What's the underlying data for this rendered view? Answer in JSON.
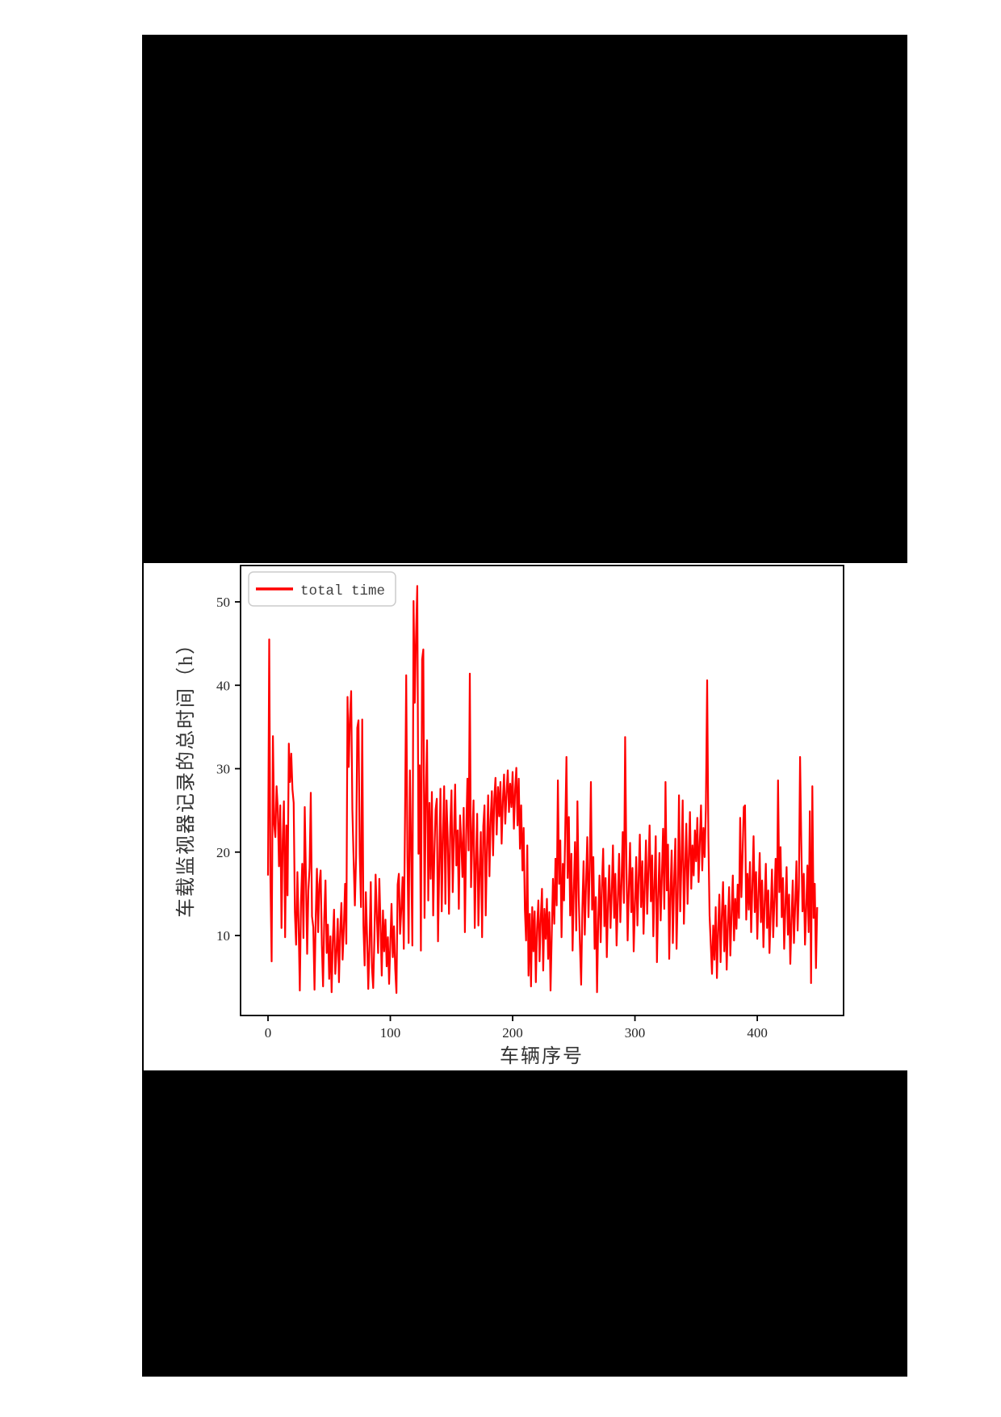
{
  "page": {
    "background_color": "#ffffff",
    "redacted_block_color": "#000000"
  },
  "chart_data": {
    "type": "line",
    "title": "",
    "xlabel": "车辆序号",
    "ylabel": "车载监视器记录的总时间（h）",
    "legend": {
      "position": "upper left",
      "entries": [
        "total time"
      ],
      "border_color": "#cccccc",
      "text_color": "#404040"
    },
    "grid": false,
    "line_color": "#ff0000",
    "axis_color": "#000000",
    "xlim": [
      -23,
      470
    ],
    "ylim": [
      0.4,
      54.3
    ],
    "xticks": [
      0,
      100,
      200,
      300,
      400
    ],
    "yticks": [
      10,
      20,
      30,
      40,
      50
    ],
    "series": [
      {
        "name": "total time",
        "color": "#ff0000",
        "x_start": 0,
        "x_step": 1,
        "values": [
          17.2,
          45.5,
          16.8,
          6.9,
          33.9,
          23.4,
          21.8,
          27.9,
          25.2,
          18.3,
          25.6,
          10.9,
          21.4,
          26.1,
          9.8,
          23.2,
          14.8,
          33.0,
          28.4,
          31.8,
          27.5,
          25.9,
          12.8,
          8.9,
          17.6,
          11.4,
          3.4,
          14.1,
          18.6,
          9.7,
          25.4,
          17.0,
          7.8,
          15.4,
          18.1,
          27.1,
          12.3,
          11.0,
          3.5,
          12.2,
          18.0,
          10.4,
          16.1,
          17.8,
          8.9,
          3.9,
          12.1,
          16.6,
          7.9,
          11.3,
          4.8,
          9.9,
          3.2,
          9.4,
          13.1,
          5.4,
          8.1,
          12.0,
          4.4,
          10.4,
          13.9,
          7.1,
          10.8,
          16.2,
          9.0,
          38.6,
          30.2,
          36.1,
          39.3,
          25.1,
          18.9,
          13.6,
          19.4,
          34.9,
          35.8,
          19.8,
          13.4,
          35.9,
          11.2,
          6.4,
          15.2,
          9.9,
          3.6,
          9.1,
          16.4,
          6.1,
          3.7,
          9.8,
          17.3,
          12.1,
          7.9,
          16.8,
          11.2,
          5.2,
          13.0,
          8.1,
          11.9,
          6.3,
          9.8,
          4.2,
          8.9,
          13.8,
          7.4,
          11.1,
          6.0,
          3.1,
          16.1,
          17.4,
          10.2,
          13.3,
          17.0,
          8.4,
          23.8,
          41.2,
          19.6,
          9.1,
          29.8,
          20.3,
          8.8,
          50.1,
          37.9,
          45.6,
          51.9,
          19.8,
          30.4,
          8.2,
          43.1,
          44.3,
          12.1,
          26.8,
          33.4,
          14.2,
          25.9,
          16.8,
          27.2,
          12.4,
          19.9,
          25.1,
          26.4,
          9.3,
          18.2,
          27.6,
          12.9,
          22.1,
          27.9,
          13.8,
          26.2,
          21.4,
          12.6,
          23.0,
          27.4,
          15.2,
          21.8,
          28.1,
          18.4,
          22.6,
          13.2,
          24.4,
          21.2,
          17.0,
          25.3,
          10.4,
          22.0,
          28.8,
          20.2,
          41.4,
          15.8,
          21.4,
          26.2,
          10.9,
          18.8,
          24.6,
          11.2,
          17.6,
          22.4,
          9.8,
          23.1,
          25.6,
          12.4,
          20.3,
          26.8,
          17.1,
          23.9,
          27.3,
          19.6,
          26.4,
          28.9,
          22.1,
          27.8,
          24.3,
          28.4,
          21.0,
          26.1,
          29.3,
          23.4,
          27.1,
          29.8,
          24.8,
          28.2,
          25.4,
          29.6,
          22.8,
          27.4,
          30.1,
          23.2,
          28.8,
          20.4,
          25.6,
          17.8,
          22.9,
          13.1,
          9.4,
          20.8,
          5.2,
          12.6,
          3.9,
          13.4,
          8.1,
          12.9,
          4.4,
          10.8,
          14.2,
          6.9,
          12.1,
          15.6,
          5.8,
          13.2,
          9.6,
          14.4,
          7.2,
          12.8,
          3.4,
          10.2,
          16.8,
          11.4,
          19.2,
          13.6,
          28.6,
          16.2,
          21.4,
          9.8,
          18.6,
          14.2,
          22.8,
          31.4,
          16.9,
          24.2,
          12.4,
          19.8,
          8.2,
          15.4,
          21.2,
          10.6,
          26.1,
          14.8,
          8.9,
          4.1,
          13.2,
          18.9,
          10.1,
          16.4,
          21.8,
          12.2,
          17.9,
          28.4,
          13.1,
          19.4,
          8.4,
          14.6,
          3.2,
          11.9,
          17.2,
          9.2,
          15.8,
          20.4,
          11.1,
          16.9,
          7.4,
          13.8,
          18.4,
          10.9,
          15.2,
          20.8,
          12.1,
          17.4,
          8.8,
          14.1,
          19.8,
          11.6,
          16.2,
          22.4,
          13.9,
          33.8,
          18.2,
          9.4,
          15.6,
          21.1,
          12.8,
          18.1,
          8.1,
          13.9,
          19.4,
          11.2,
          16.8,
          22.1,
          13.4,
          18.9,
          10.2,
          15.9,
          21.4,
          12.6,
          17.8,
          23.2,
          14.1,
          19.6,
          9.9,
          16.1,
          21.9,
          6.8,
          14.4,
          19.9,
          11.8,
          17.1,
          22.8,
          13.2,
          28.4,
          15.4,
          20.9,
          7.2,
          14.9,
          20.2,
          9.1,
          16.4,
          21.6,
          8.4,
          15.1,
          26.8,
          12.9,
          18.6,
          26.2,
          11.4,
          17.9,
          23.4,
          13.8,
          19.2,
          24.8,
          15.6,
          20.8,
          17.2,
          22.6,
          18.9,
          24.1,
          16.4,
          21.2,
          25.6,
          17.8,
          22.9,
          19.4,
          25.2,
          40.6,
          21.8,
          12.4,
          8.9,
          5.4,
          11.2,
          7.1,
          13.4,
          4.9,
          10.6,
          14.9,
          6.8,
          12.2,
          16.4,
          8.1,
          13.6,
          5.9,
          11.4,
          15.8,
          7.6,
          12.9,
          17.2,
          9.4,
          14.4,
          10.8,
          16.1,
          12.1,
          24.1,
          14.6,
          19.8,
          25.4,
          25.6,
          11.9,
          17.4,
          13.1,
          18.8,
          10.4,
          15.9,
          21.9,
          12.8,
          17.6,
          9.6,
          14.8,
          19.9,
          11.6,
          16.6,
          8.6,
          13.9,
          18.6,
          10.9,
          15.4,
          7.9,
          12.6,
          17.9,
          9.8,
          14.2,
          19.2,
          11.1,
          28.6,
          15.2,
          20.6,
          12.2,
          16.9,
          8.4,
          13.4,
          18.2,
          10.1,
          14.9,
          6.6,
          11.9,
          16.6,
          9.1,
          13.8,
          18.9,
          10.6,
          15.6,
          31.4,
          21.1,
          12.9,
          17.4,
          8.9,
          13.2,
          18.4,
          10.4,
          24.9,
          4.3,
          27.9,
          12.1,
          16.2,
          6.1,
          13.4
        ]
      }
    ]
  }
}
